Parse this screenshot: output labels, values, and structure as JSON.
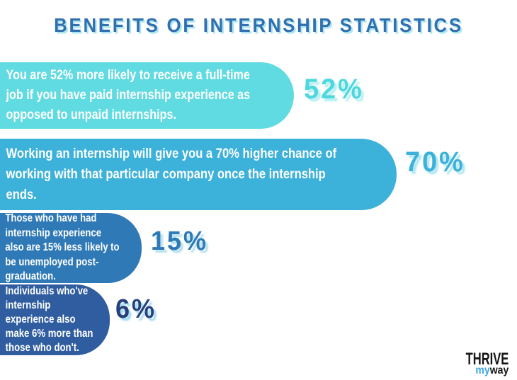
{
  "title": "BENEFITS OF INTERNSHIP STATISTICS",
  "bars": [
    {
      "text": "You are 52% more likely to receive a full-time\njob if you have paid internship experience as\nopposed to unpaid internships.",
      "value": 52,
      "value_label": "52%",
      "color": "#5FDBE1",
      "label_color": "#4ED8DE"
    },
    {
      "text": "Working an internship will give you a 70% higher chance of\nworking with that particular company once the internship\nends.",
      "value": 70,
      "value_label": "70%",
      "color": "#3CB1D9",
      "label_color": "#3CB2DA"
    },
    {
      "text": "Those who have had\ninternship experience\nalso are 15% less likely to\nbe unemployed post-\ngraduation.",
      "value": 15,
      "value_label": "15%",
      "color": "#2F79B6",
      "label_color": "#2E7AB6"
    },
    {
      "text": "Individuals who've\ninternship\nexperience also\nmake 6% more than\nthose who don't.",
      "value": 6,
      "value_label": "6%",
      "color": "#2F5DA0",
      "label_color": "#273F7D"
    }
  ],
  "logo": {
    "line1": "THRIVE",
    "line2_part1": "my",
    "line2_part2": "way"
  },
  "colors": {
    "title_text": "#316FAF",
    "title_shadow": "#ADE6F2",
    "bar_text": "#FFFFFF",
    "background": "#FFFFFF",
    "logo_accent": "#3EA8E0",
    "logo_dark": "#161616"
  },
  "chart_data": {
    "type": "bar",
    "orientation": "horizontal",
    "title": "BENEFITS OF INTERNSHIP STATISTICS",
    "categories": [
      "You are 52% more likely to receive a full-time job if you have paid internship experience as opposed to unpaid internships.",
      "Working an internship will give you a 70% higher chance of working with that particular company once the internship ends.",
      "Those who have had internship experience also are 15% less likely to be unemployed post-graduation.",
      "Individuals who've internship experience also make 6% more than those who don't."
    ],
    "values": [
      52,
      70,
      15,
      6
    ],
    "value_labels": [
      "52%",
      "70%",
      "15%",
      "6%"
    ],
    "bar_colors": [
      "#5FDBE1",
      "#3CB1D9",
      "#2F79B6",
      "#2F5DA0"
    ],
    "xlabel": "",
    "ylabel": "",
    "grid": false,
    "legend": false
  }
}
